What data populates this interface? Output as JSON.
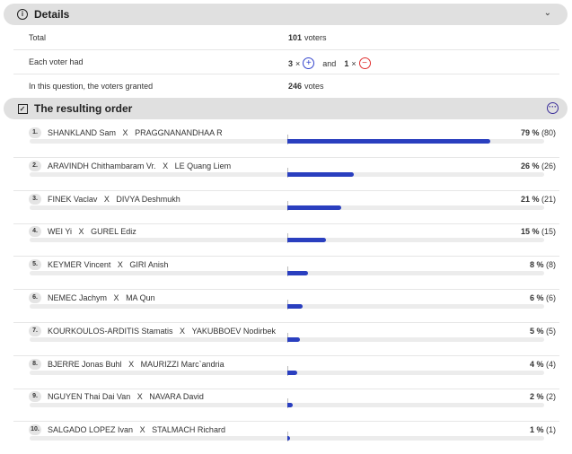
{
  "details": {
    "title": "Details",
    "rows": [
      {
        "label": "Total",
        "value_num": "101",
        "value_unit": "voters"
      },
      {
        "label": "Each voter had",
        "plus_count": "3",
        "times": "×",
        "and": "and",
        "minus_count": "1"
      },
      {
        "label": "In this question, the voters granted",
        "value_num": "246",
        "value_unit": "votes"
      }
    ]
  },
  "order": {
    "title": "The resulting order",
    "separator": "X",
    "items": [
      {
        "rank": "1.",
        "a": "SHANKLAND Sam",
        "b": "PRAGGNANANDHAA R",
        "pct": "79 %",
        "count": "(80)",
        "value": 79
      },
      {
        "rank": "2.",
        "a": "ARAVINDH Chithambaram Vr.",
        "b": "LE Quang Liem",
        "pct": "26 %",
        "count": "(26)",
        "value": 26
      },
      {
        "rank": "3.",
        "a": "FINEK Vaclav",
        "b": "DIVYA Deshmukh",
        "pct": "21 %",
        "count": "(21)",
        "value": 21
      },
      {
        "rank": "4.",
        "a": "WEI Yi",
        "b": "GUREL Ediz",
        "pct": "15 %",
        "count": "(15)",
        "value": 15
      },
      {
        "rank": "5.",
        "a": "KEYMER Vincent",
        "b": "GIRI Anish",
        "pct": "8 %",
        "count": "(8)",
        "value": 8
      },
      {
        "rank": "6.",
        "a": "NEMEC Jachym",
        "b": "MA Qun",
        "pct": "6 %",
        "count": "(6)",
        "value": 6
      },
      {
        "rank": "7.",
        "a": "KOURKOULOS-ARDITIS Stamatis",
        "b": "YAKUBBOEV Nodirbek",
        "pct": "5 %",
        "count": "(5)",
        "value": 5
      },
      {
        "rank": "8.",
        "a": "BJERRE Jonas Buhl",
        "b": "MAURIZZI Marc`andria",
        "pct": "4 %",
        "count": "(4)",
        "value": 4
      },
      {
        "rank": "9.",
        "a": "NGUYEN Thai Dai Van",
        "b": "NAVARA David",
        "pct": "2 %",
        "count": "(2)",
        "value": 2
      },
      {
        "rank": "10.",
        "a": "SALGADO LOPEZ Ivan",
        "b": "STALMACH Richard",
        "pct": "1 %",
        "count": "(1)",
        "value": 1
      }
    ]
  },
  "colors": {
    "bar": "#2a3fbf",
    "plus": "#3344cc",
    "minus": "#e03030",
    "menu": "#3a2d9a"
  }
}
